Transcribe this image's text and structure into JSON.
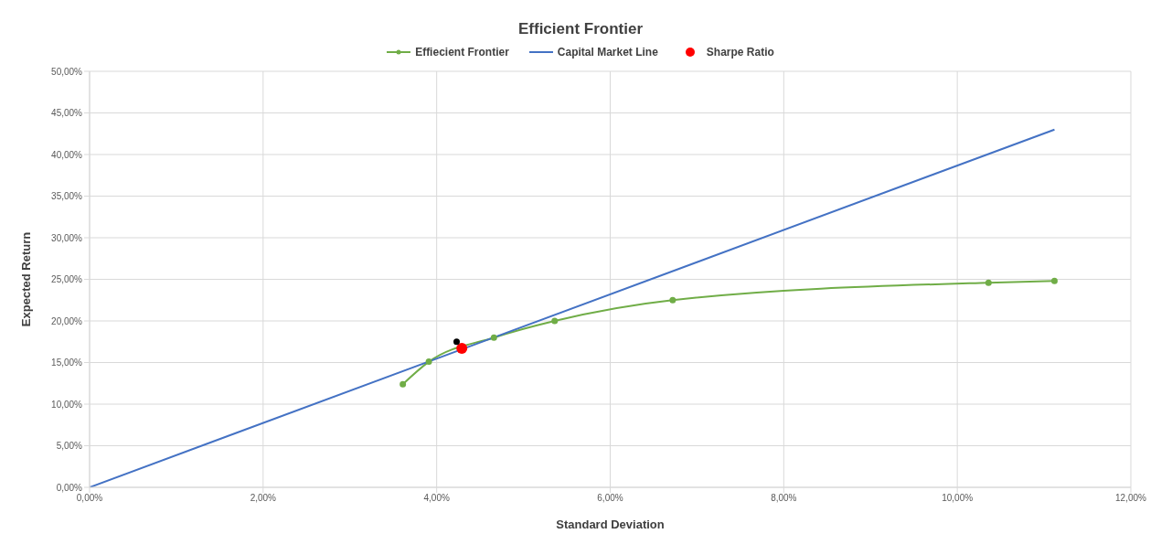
{
  "chart_data": {
    "type": "line",
    "title": "Efficient Frontier",
    "xlabel": "Standard Deviation",
    "ylabel": "Expected Return",
    "xlim": [
      0,
      12
    ],
    "ylim": [
      0,
      50
    ],
    "xticks": [
      {
        "value": 0,
        "label": "0,00%"
      },
      {
        "value": 2,
        "label": "2,00%"
      },
      {
        "value": 4,
        "label": "4,00%"
      },
      {
        "value": 6,
        "label": "6,00%"
      },
      {
        "value": 8,
        "label": "8,00%"
      },
      {
        "value": 10,
        "label": "10,00%"
      },
      {
        "value": 12,
        "label": "12,00%"
      }
    ],
    "yticks": [
      {
        "value": 0,
        "label": "0,00%"
      },
      {
        "value": 5,
        "label": "5,00%"
      },
      {
        "value": 10,
        "label": "10,00%"
      },
      {
        "value": 15,
        "label": "15,00%"
      },
      {
        "value": 20,
        "label": "20,00%"
      },
      {
        "value": 25,
        "label": "25,00%"
      },
      {
        "value": 30,
        "label": "30,00%"
      },
      {
        "value": 35,
        "label": "35,00%"
      },
      {
        "value": 40,
        "label": "40,00%"
      },
      {
        "value": 45,
        "label": "45,00%"
      },
      {
        "value": 50,
        "label": "50,00%"
      }
    ],
    "grid": true,
    "legend": "top",
    "series": [
      {
        "name": "Effiecient Frontier",
        "color": "#70ad47",
        "marker": "circle",
        "x": [
          3.61,
          3.91,
          4.66,
          5.36,
          6.72,
          10.36,
          11.12
        ],
        "values": [
          12.4,
          15.1,
          18.0,
          20.0,
          22.5,
          24.6,
          24.8
        ]
      },
      {
        "name": "Capital Market Line",
        "color": "#4472c4",
        "marker": "none",
        "x": [
          0,
          11.12
        ],
        "values": [
          0,
          43.0
        ]
      },
      {
        "name": "Sharpe Ratio",
        "type": "scatter",
        "color": "#ff0000",
        "marker": "circle",
        "x": [
          4.29
        ],
        "values": [
          16.7
        ]
      },
      {
        "type": "scatter",
        "color": "#000000",
        "marker": "circle",
        "x": [
          4.23
        ],
        "values": [
          17.5
        ]
      }
    ]
  }
}
